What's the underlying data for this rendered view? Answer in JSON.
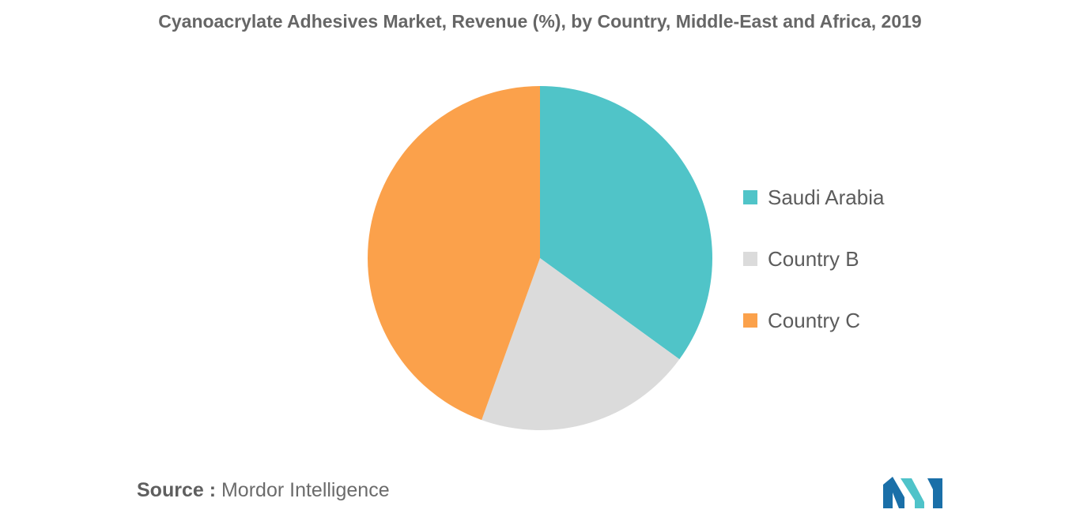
{
  "chart_data": {
    "type": "pie",
    "title": "Cyanoacrylate Adhesives Market, Revenue (%), by Country, Middle-East and Africa, 2019",
    "legend_position": "right",
    "slices": [
      {
        "label": "Saudi Arabia",
        "value": 35,
        "color": "#50C4C8"
      },
      {
        "label": "Country B",
        "value": 20.5,
        "color": "#DBDBDB"
      },
      {
        "label": "Country C",
        "value": 44.5,
        "color": "#FBA14B"
      }
    ]
  },
  "footer": {
    "source_label": "Source :",
    "source_value": "Mordor Intelligence"
  },
  "logo": {
    "icon": "mordor-intelligence-logo-icon",
    "colors": [
      "#1A6FA8",
      "#4FC3C9"
    ]
  }
}
